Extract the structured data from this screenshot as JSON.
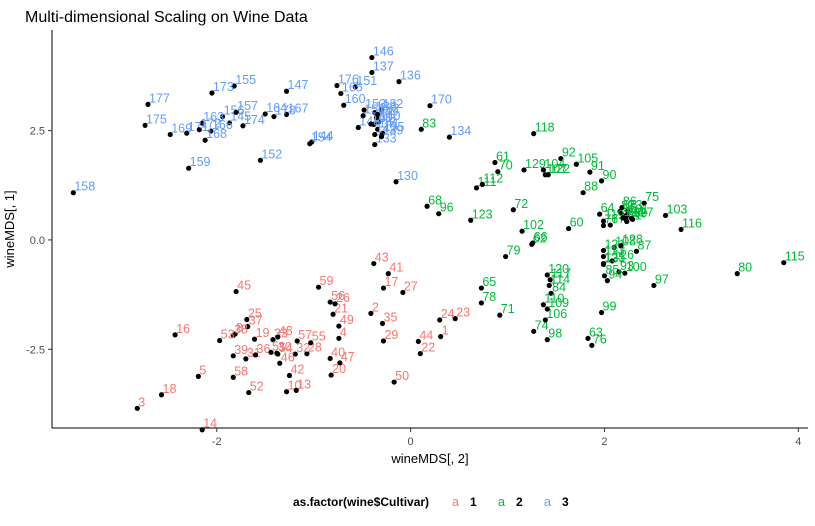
{
  "chart_data": {
    "type": "scatter",
    "title": "Multi-dimensional Scaling on Wine Data",
    "xlabel": "wineMDS[, 2]",
    "ylabel": "wineMDS[, 1]",
    "xlim": [
      -3.7,
      4.1
    ],
    "ylim": [
      -4.3,
      4.8
    ],
    "x_ticks": [
      -2,
      0,
      2,
      4
    ],
    "x_tick_labels": [
      "-2",
      "0",
      "2",
      "4"
    ],
    "y_ticks": [
      -2.5,
      0.0,
      2.5
    ],
    "y_tick_labels": [
      "-2.5",
      "0.0",
      "2.5"
    ],
    "grid": false,
    "legend": {
      "title": "as.factor(wine$Cultivar)",
      "position": "bottom",
      "key_glyph": "a",
      "entries": [
        "1",
        "2",
        "3"
      ]
    },
    "point_color": "#000000",
    "series": [
      {
        "name": "1",
        "color": "#F8766D",
        "points": [
          {
            "label": "1",
            "x": 0.31,
            "y": -2.21
          },
          {
            "label": "2",
            "x": -0.41,
            "y": -1.68
          },
          {
            "label": "3",
            "x": -2.82,
            "y": -3.85
          },
          {
            "label": "4",
            "x": -0.74,
            "y": -2.25
          },
          {
            "label": "5",
            "x": -2.19,
            "y": -3.12
          },
          {
            "label": "8",
            "x": -1.81,
            "y": -2.15
          },
          {
            "label": "10",
            "x": -1.28,
            "y": -3.47
          },
          {
            "label": "13",
            "x": -1.18,
            "y": -3.44
          },
          {
            "label": "14",
            "x": -2.15,
            "y": -4.34
          },
          {
            "label": "16",
            "x": -2.43,
            "y": -2.17
          },
          {
            "label": "17",
            "x": -0.28,
            "y": -1.1
          },
          {
            "label": "18",
            "x": -2.57,
            "y": -3.54
          },
          {
            "label": "19",
            "x": -1.61,
            "y": -2.27
          },
          {
            "label": "20",
            "x": -0.82,
            "y": -3.09
          },
          {
            "label": "21",
            "x": -0.8,
            "y": -1.7
          },
          {
            "label": "22",
            "x": 0.1,
            "y": -2.6
          },
          {
            "label": "23",
            "x": 0.46,
            "y": -1.8
          },
          {
            "label": "24",
            "x": 0.3,
            "y": -1.83
          },
          {
            "label": "25",
            "x": -1.69,
            "y": -1.82
          },
          {
            "label": "26",
            "x": -0.78,
            "y": -1.46
          },
          {
            "label": "27",
            "x": -0.08,
            "y": -1.2
          },
          {
            "label": "28",
            "x": -1.07,
            "y": -2.6
          },
          {
            "label": "29",
            "x": -0.28,
            "y": -2.31
          },
          {
            "label": "30",
            "x": -1.38,
            "y": -2.59
          },
          {
            "label": "31",
            "x": -1.7,
            "y": -2.72
          },
          {
            "label": "32",
            "x": -1.19,
            "y": -2.61
          },
          {
            "label": "33",
            "x": -1.42,
            "y": -2.28
          },
          {
            "label": "35",
            "x": -0.29,
            "y": -1.91
          },
          {
            "label": "36",
            "x": -1.6,
            "y": -2.63
          },
          {
            "label": "37",
            "x": -1.68,
            "y": -1.98
          },
          {
            "label": "38",
            "x": -1.83,
            "y": -2.18
          },
          {
            "label": "39",
            "x": -1.83,
            "y": -2.65
          },
          {
            "label": "40",
            "x": -0.83,
            "y": -2.71
          },
          {
            "label": "41",
            "x": -0.23,
            "y": -0.77
          },
          {
            "label": "42",
            "x": -1.25,
            "y": -3.1
          },
          {
            "label": "43",
            "x": -0.38,
            "y": -0.54
          },
          {
            "label": "44",
            "x": 0.08,
            "y": -2.32
          },
          {
            "label": "45",
            "x": -1.8,
            "y": -1.18
          },
          {
            "label": "46",
            "x": -1.35,
            "y": -2.82
          },
          {
            "label": "47",
            "x": -0.73,
            "y": -2.81
          },
          {
            "label": "48",
            "x": -1.37,
            "y": -2.22
          },
          {
            "label": "49",
            "x": -0.74,
            "y": -1.97
          },
          {
            "label": "50",
            "x": -0.17,
            "y": -3.25
          },
          {
            "label": "51",
            "x": -1.44,
            "y": -2.57
          },
          {
            "label": "52",
            "x": -1.67,
            "y": -3.49
          },
          {
            "label": "53",
            "x": -1.97,
            "y": -2.3
          },
          {
            "label": "54",
            "x": -1.37,
            "y": -2.61
          },
          {
            "label": "55",
            "x": -1.03,
            "y": -2.35
          },
          {
            "label": "56",
            "x": -0.83,
            "y": -1.42
          },
          {
            "label": "57",
            "x": -1.17,
            "y": -2.31
          },
          {
            "label": "58",
            "x": -1.83,
            "y": -3.14
          },
          {
            "label": "59",
            "x": -0.95,
            "y": -1.08
          }
        ]
      },
      {
        "name": "2",
        "color": "#00BA38",
        "points": [
          {
            "label": "60",
            "x": 1.63,
            "y": 0.26
          },
          {
            "label": "61",
            "x": 0.87,
            "y": 1.77
          },
          {
            "label": "62",
            "x": 1.25,
            "y": -0.1
          },
          {
            "label": "63",
            "x": 1.83,
            "y": -2.25
          },
          {
            "label": "64",
            "x": 1.95,
            "y": 0.59
          },
          {
            "label": "65",
            "x": 0.73,
            "y": -1.1
          },
          {
            "label": "66",
            "x": 1.26,
            "y": -0.07
          },
          {
            "label": "67",
            "x": 2.06,
            "y": 0.34
          },
          {
            "label": "68",
            "x": 0.17,
            "y": 0.77
          },
          {
            "label": "69",
            "x": 2.29,
            "y": 0.47
          },
          {
            "label": "70",
            "x": 0.9,
            "y": 1.56
          },
          {
            "label": "71",
            "x": 0.92,
            "y": -1.72
          },
          {
            "label": "72",
            "x": 1.06,
            "y": 0.69
          },
          {
            "label": "73",
            "x": 2.24,
            "y": 0.66
          },
          {
            "label": "74",
            "x": 1.27,
            "y": -2.09
          },
          {
            "label": "75",
            "x": 2.41,
            "y": 0.84
          },
          {
            "label": "76",
            "x": 1.87,
            "y": -2.41
          },
          {
            "label": "77",
            "x": 1.99,
            "y": 0.33
          },
          {
            "label": "78",
            "x": 0.73,
            "y": -1.44
          },
          {
            "label": "79",
            "x": 0.98,
            "y": -0.38
          },
          {
            "label": "80",
            "x": 3.37,
            "y": -0.77
          },
          {
            "label": "81",
            "x": 2.23,
            "y": 0.42
          },
          {
            "label": "82",
            "x": 2.16,
            "y": 0.65
          },
          {
            "label": "83",
            "x": 0.11,
            "y": 2.53
          },
          {
            "label": "84",
            "x": 1.45,
            "y": -1.22
          },
          {
            "label": "85",
            "x": 2.0,
            "y": -0.82
          },
          {
            "label": "86",
            "x": 2.18,
            "y": 0.74
          },
          {
            "label": "87",
            "x": 2.33,
            "y": -0.26
          },
          {
            "label": "88",
            "x": 1.78,
            "y": 1.08
          },
          {
            "label": "89",
            "x": 2.22,
            "y": 0.48
          },
          {
            "label": "90",
            "x": 1.97,
            "y": 1.35
          },
          {
            "label": "91",
            "x": 1.85,
            "y": 1.55
          },
          {
            "label": "92",
            "x": 1.55,
            "y": 1.86
          },
          {
            "label": "93",
            "x": 2.15,
            "y": -0.73
          },
          {
            "label": "94",
            "x": 2.03,
            "y": -0.93
          },
          {
            "label": "95",
            "x": 2.18,
            "y": 0.59
          },
          {
            "label": "96",
            "x": 0.29,
            "y": 0.6
          },
          {
            "label": "97",
            "x": 2.51,
            "y": -1.04
          },
          {
            "label": "98",
            "x": 1.41,
            "y": -2.28
          },
          {
            "label": "99",
            "x": 1.97,
            "y": -1.66
          },
          {
            "label": "100",
            "x": 2.21,
            "y": -0.76
          },
          {
            "label": "101",
            "x": 2.23,
            "y": 0.56
          },
          {
            "label": "102",
            "x": 1.15,
            "y": 0.2
          },
          {
            "label": "103",
            "x": 2.63,
            "y": 0.56
          },
          {
            "label": "104",
            "x": 1.37,
            "y": 1.6
          },
          {
            "label": "105",
            "x": 1.71,
            "y": 1.73
          },
          {
            "label": "106",
            "x": 1.39,
            "y": -1.83
          },
          {
            "label": "107",
            "x": 1.39,
            "y": 1.49
          },
          {
            "label": "108",
            "x": 2.1,
            "y": -0.17
          },
          {
            "label": "109",
            "x": 1.41,
            "y": -1.58
          },
          {
            "label": "110",
            "x": 1.37,
            "y": -1.48
          },
          {
            "label": "111",
            "x": 0.68,
            "y": 1.19
          },
          {
            "label": "112",
            "x": 0.74,
            "y": 1.27
          },
          {
            "label": "113",
            "x": 1.99,
            "y": -0.38
          },
          {
            "label": "114",
            "x": 1.43,
            "y": -1.04
          },
          {
            "label": "115",
            "x": 3.85,
            "y": -0.52
          },
          {
            "label": "116",
            "x": 2.79,
            "y": 0.24
          },
          {
            "label": "117",
            "x": 1.44,
            "y": -0.91
          },
          {
            "label": "118",
            "x": 1.27,
            "y": 2.43
          },
          {
            "label": "119",
            "x": 1.99,
            "y": 0.43
          },
          {
            "label": "120",
            "x": 1.41,
            "y": -0.8
          },
          {
            "label": "121",
            "x": 1.99,
            "y": -0.24
          },
          {
            "label": "122",
            "x": 1.42,
            "y": 1.49
          },
          {
            "label": "123",
            "x": 0.62,
            "y": 0.45
          },
          {
            "label": "124",
            "x": 2.19,
            "y": 0.5
          },
          {
            "label": "125",
            "x": 1.99,
            "y": -0.54
          },
          {
            "label": "126",
            "x": 2.08,
            "y": -0.48
          },
          {
            "label": "127",
            "x": 2.28,
            "y": 0.49
          },
          {
            "label": "128",
            "x": 2.17,
            "y": -0.13
          },
          {
            "label": "129",
            "x": 1.17,
            "y": 1.6
          },
          {
            "label": "131",
            "x": 1.99,
            "y": -0.56
          }
        ]
      },
      {
        "name": "3",
        "color": "#619CFF",
        "points": [
          {
            "label": "130",
            "x": -0.15,
            "y": 1.33
          },
          {
            "label": "132",
            "x": -0.3,
            "y": 2.97
          },
          {
            "label": "133",
            "x": -0.37,
            "y": 2.18
          },
          {
            "label": "134",
            "x": 0.4,
            "y": 2.35
          },
          {
            "label": "135",
            "x": -0.29,
            "y": 2.44
          },
          {
            "label": "136",
            "x": -0.12,
            "y": 3.62
          },
          {
            "label": "137",
            "x": -0.4,
            "y": 3.83
          },
          {
            "label": "138",
            "x": -0.37,
            "y": 2.91
          },
          {
            "label": "139",
            "x": -0.3,
            "y": 2.36
          },
          {
            "label": "140",
            "x": -0.33,
            "y": 2.7
          },
          {
            "label": "141",
            "x": -0.34,
            "y": 2.53
          },
          {
            "label": "142",
            "x": -0.37,
            "y": 2.41
          },
          {
            "label": "143",
            "x": -0.38,
            "y": 2.64
          },
          {
            "label": "144",
            "x": -1.02,
            "y": 2.24
          },
          {
            "label": "145",
            "x": -1.87,
            "y": 2.68
          },
          {
            "label": "146",
            "x": -0.4,
            "y": 4.17
          },
          {
            "label": "147",
            "x": -1.28,
            "y": 3.4
          },
          {
            "label": "148",
            "x": -0.54,
            "y": 2.57
          },
          {
            "label": "149",
            "x": -0.35,
            "y": 2.8
          },
          {
            "label": "150",
            "x": -0.49,
            "y": 2.84
          },
          {
            "label": "151",
            "x": -0.57,
            "y": 3.5
          },
          {
            "label": "152",
            "x": -1.55,
            "y": 1.82
          },
          {
            "label": "153",
            "x": -0.48,
            "y": 2.97
          },
          {
            "label": "154",
            "x": -1.04,
            "y": 2.2
          },
          {
            "label": "155",
            "x": -1.82,
            "y": 3.52
          },
          {
            "label": "156",
            "x": -1.94,
            "y": 2.82
          },
          {
            "label": "157",
            "x": -1.8,
            "y": 2.92
          },
          {
            "label": "158",
            "x": -3.48,
            "y": 1.08
          },
          {
            "label": "159",
            "x": -2.29,
            "y": 1.64
          },
          {
            "label": "160",
            "x": -0.69,
            "y": 3.08
          },
          {
            "label": "161",
            "x": -0.41,
            "y": 2.65
          },
          {
            "label": "162",
            "x": -0.34,
            "y": 2.87
          },
          {
            "label": "163",
            "x": -2.15,
            "y": 2.67
          },
          {
            "label": "164",
            "x": -1.5,
            "y": 2.88
          },
          {
            "label": "165",
            "x": -0.72,
            "y": 3.35
          },
          {
            "label": "166",
            "x": -2.06,
            "y": 2.49
          },
          {
            "label": "167",
            "x": -1.28,
            "y": 2.87
          },
          {
            "label": "168",
            "x": -2.12,
            "y": 2.28
          },
          {
            "label": "169",
            "x": -2.48,
            "y": 2.41
          },
          {
            "label": "170",
            "x": 0.2,
            "y": 3.07
          },
          {
            "label": "171",
            "x": -2.31,
            "y": 2.44
          },
          {
            "label": "172",
            "x": -2.18,
            "y": 2.52
          },
          {
            "label": "173",
            "x": -2.05,
            "y": 3.36
          },
          {
            "label": "174",
            "x": -1.73,
            "y": 2.61
          },
          {
            "label": "175",
            "x": -2.74,
            "y": 2.62
          },
          {
            "label": "176",
            "x": -0.76,
            "y": 3.53
          },
          {
            "label": "177",
            "x": -2.71,
            "y": 3.1
          },
          {
            "label": "178",
            "x": -1.41,
            "y": 2.82
          }
        ]
      }
    ]
  }
}
